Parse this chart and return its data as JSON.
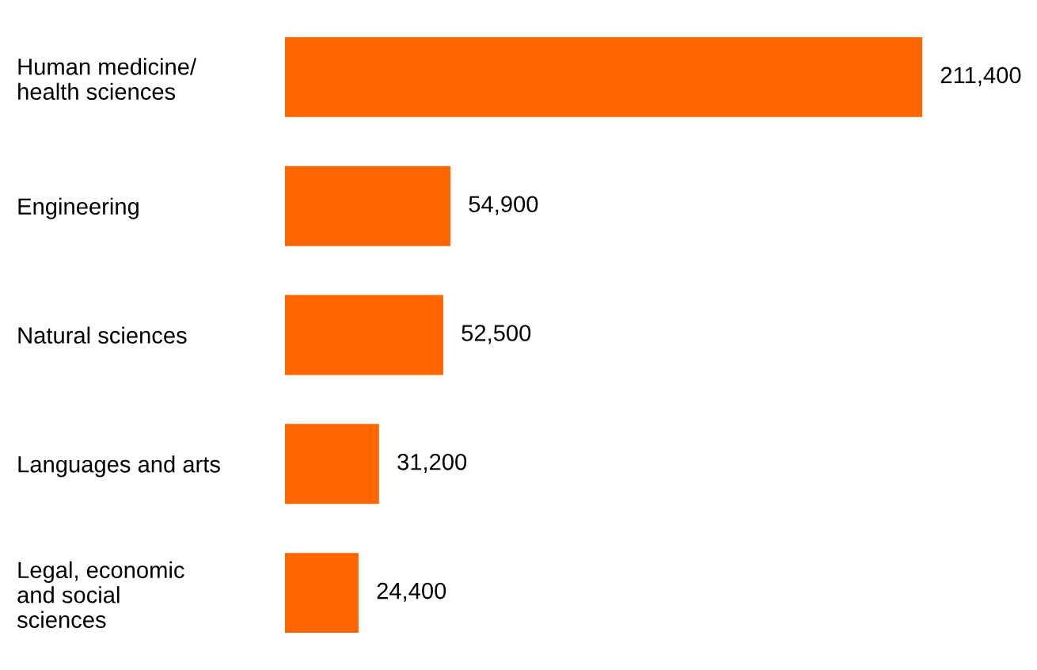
{
  "chart_data": {
    "type": "bar",
    "orientation": "horizontal",
    "categories": [
      "Human medicine/\nhealth sciences",
      "Engineering",
      "Natural sciences",
      "Languages and arts",
      "Legal, economic\nand social\nsciences"
    ],
    "values": [
      211400,
      54900,
      52500,
      31200,
      24400
    ],
    "value_labels": [
      "211,400",
      "54,900",
      "52,500",
      "31,200",
      "24,400"
    ],
    "color": "#ff6600",
    "grid": false,
    "legend": false
  }
}
